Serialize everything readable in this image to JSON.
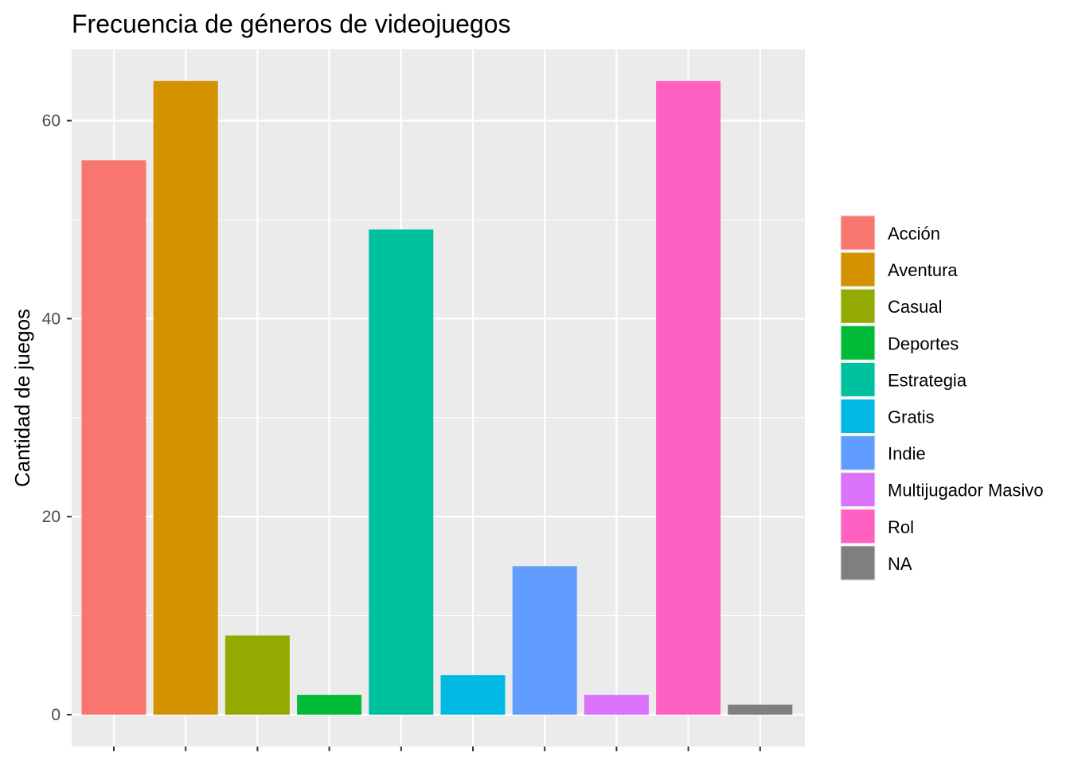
{
  "chart_data": {
    "type": "bar",
    "title": "Frecuencia de géneros de videojuegos",
    "xlabel": "",
    "ylabel": "Cantidad de juegos",
    "categories": [
      "Acción",
      "Aventura",
      "Casual",
      "Deportes",
      "Estrategia",
      "Gratis",
      "Indie",
      "Multijugador Masivo",
      "Rol",
      "NA"
    ],
    "values": [
      56,
      64,
      8,
      2,
      49,
      4,
      15,
      2,
      64,
      1
    ],
    "colors": [
      "#F8766D",
      "#D39200",
      "#93AA00",
      "#00BA38",
      "#00C19F",
      "#00B9E3",
      "#619CFF",
      "#DB72FB",
      "#FF61C3",
      "#7F7F7F"
    ],
    "ylim": [
      0,
      66.4
    ],
    "yticks": [
      0,
      20,
      40,
      60
    ],
    "x_tick_labels_shown": false,
    "grid": true,
    "panel_background": "#EBEBEB",
    "legend": {
      "position": "right",
      "entries": [
        "Acción",
        "Aventura",
        "Casual",
        "Deportes",
        "Estrategia",
        "Gratis",
        "Indie",
        "Multijugador Masivo",
        "Rol",
        "NA"
      ]
    }
  }
}
